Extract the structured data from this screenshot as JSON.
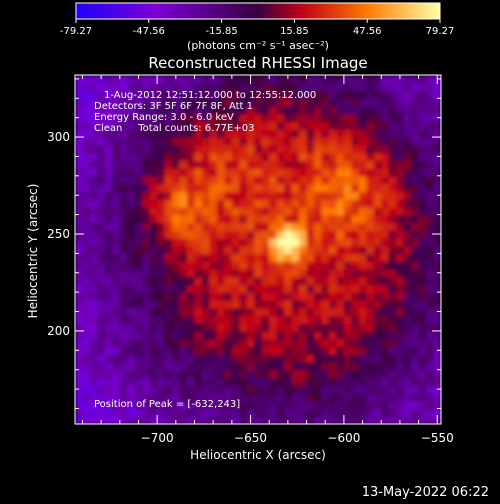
{
  "colorbar": {
    "ticks": [
      "-79.27",
      "-47.56",
      "-15.85",
      "15.85",
      "47.56",
      "79.27"
    ],
    "range": [
      -79.27,
      79.27
    ],
    "units": "(photons cm⁻² s⁻¹ asec⁻²)",
    "colormap": [
      "#1f00ff",
      "#7b00d6",
      "#3a0040",
      "#c10018",
      "#ff7a00",
      "#ffffa8"
    ]
  },
  "chart_data": {
    "type": "heatmap",
    "title": "Reconstructed RHESSI Image",
    "xlabel": "Heliocentric X (arcsec)",
    "ylabel": "Heliocentric Y (arcsec)",
    "xticks": [
      -700,
      -650,
      -600,
      -550
    ],
    "yticks": [
      200,
      250,
      300
    ],
    "xlim": [
      -744,
      -548
    ],
    "ylim": [
      152,
      332
    ],
    "peak": {
      "x": -632,
      "y": 243
    },
    "annotations": [
      "1-Aug-2012 12:51:12.000 to 12:55:12.000",
      "Detectors: 3F 5F 6F 7F 8F, Att 1",
      "Energy Range: 3.0 - 6.0 keV",
      "Clean     Total counts: 6.77E+03",
      "Position of Peak = [-632,243]"
    ]
  },
  "footer": {
    "timestamp": "13-May-2022 06:22"
  }
}
